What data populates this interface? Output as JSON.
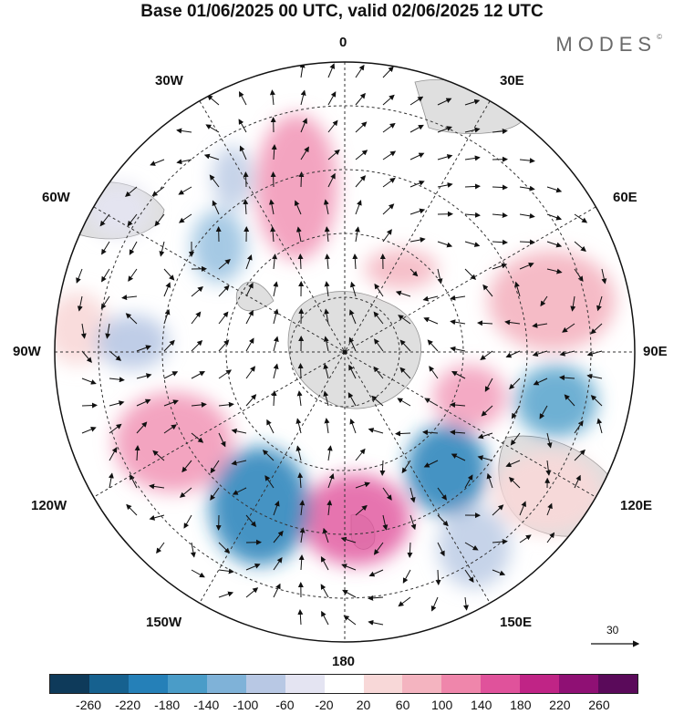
{
  "title": "Base 01/06/2025 00 UTC, valid 02/06/2025 12 UTC",
  "brand": "MODES",
  "brand_mark": "©",
  "longitude_labels": {
    "top": "0",
    "bottom": "180",
    "left": "90W",
    "right": "90E",
    "upper_left": "30W",
    "upper_right": "30E",
    "mid_upper_left": "60W",
    "mid_upper_right": "60E",
    "mid_lower_left": "120W",
    "mid_lower_right": "120E",
    "lower_left": "150W",
    "lower_right": "150E"
  },
  "reference_vector": {
    "label": "30"
  },
  "colorbar": {
    "ticks": [
      "-260",
      "-220",
      "-180",
      "-140",
      "-100",
      "-60",
      "-20",
      "20",
      "60",
      "100",
      "140",
      "180",
      "220",
      "260"
    ],
    "colors": [
      "#0e3a5a",
      "#16618f",
      "#2580b8",
      "#4a9cc8",
      "#7fb2d8",
      "#b8c8e4",
      "#e4e4f2",
      "#ffffff",
      "#f8d8d8",
      "#f4b4c0",
      "#ef86ab",
      "#e0529b",
      "#c02486",
      "#8f1074",
      "#5a0a5a"
    ]
  },
  "anomaly_centers": [
    {
      "kind": "positive",
      "lon": -20,
      "lat": -48,
      "value": 180
    },
    {
      "kind": "positive",
      "lon": 20,
      "lat": -72,
      "value": 140
    },
    {
      "kind": "positive",
      "lon": 70,
      "lat": -50,
      "value": 140
    },
    {
      "kind": "positive",
      "lon": 115,
      "lat": -68,
      "value": 140
    },
    {
      "kind": "positive",
      "lon": -115,
      "lat": -55,
      "value": 180
    },
    {
      "kind": "positive",
      "lon": 170,
      "lat": -52,
      "value": 220
    },
    {
      "kind": "negative",
      "lon": -45,
      "lat": -55,
      "value": -100
    },
    {
      "kind": "negative",
      "lon": -95,
      "lat": -50,
      "value": -60
    },
    {
      "kind": "negative",
      "lon": -150,
      "lat": -50,
      "value": -220
    },
    {
      "kind": "negative",
      "lon": 145,
      "lat": -58,
      "value": -220
    },
    {
      "kind": "negative",
      "lon": 105,
      "lat": -48,
      "value": -180
    }
  ]
}
